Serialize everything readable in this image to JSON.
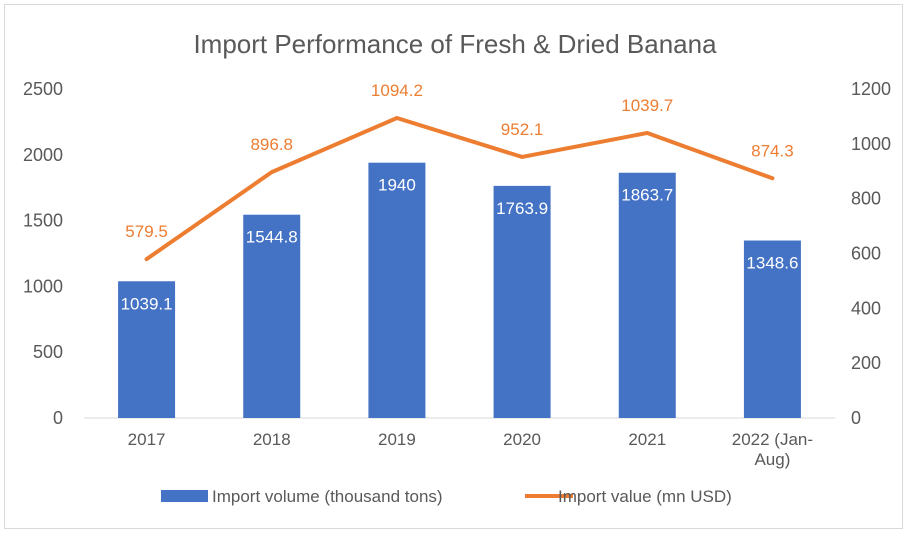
{
  "chart_data": {
    "type": "bar+line",
    "title": "Import Performance of Fresh & Dried Banana",
    "categories": [
      [
        "2017"
      ],
      [
        "2018"
      ],
      [
        "2019"
      ],
      [
        "2020"
      ],
      [
        "2021"
      ],
      [
        "2022 (Jan-",
        "Aug)"
      ]
    ],
    "series": [
      {
        "name": "Import volume (thousand tons)",
        "type": "bar",
        "axis": "left",
        "color": "#4472c4",
        "values": [
          1039.1,
          1544.8,
          1940,
          1763.9,
          1863.7,
          1348.6
        ],
        "labels": [
          "1039.1",
          "1544.8",
          "1940",
          "1763.9",
          "1863.7",
          "1348.6"
        ]
      },
      {
        "name": "Import value (mn USD)",
        "type": "line",
        "axis": "right",
        "color": "#ed7d31",
        "values": [
          579.5,
          896.8,
          1094.2,
          952.1,
          1039.7,
          874.3
        ],
        "labels": [
          "579.5",
          "896.8",
          "1094.2",
          "952.1",
          "1039.7",
          "874.3"
        ]
      }
    ],
    "y_left": {
      "range": [
        0,
        2500
      ],
      "ticks": [
        "0",
        "500",
        "1000",
        "1500",
        "2000",
        "2500"
      ]
    },
    "y_right": {
      "range": [
        0,
        1200
      ],
      "ticks": [
        "0",
        "200",
        "400",
        "600",
        "800",
        "1000",
        "1200"
      ]
    },
    "grid": false,
    "legend_position": "bottom"
  }
}
